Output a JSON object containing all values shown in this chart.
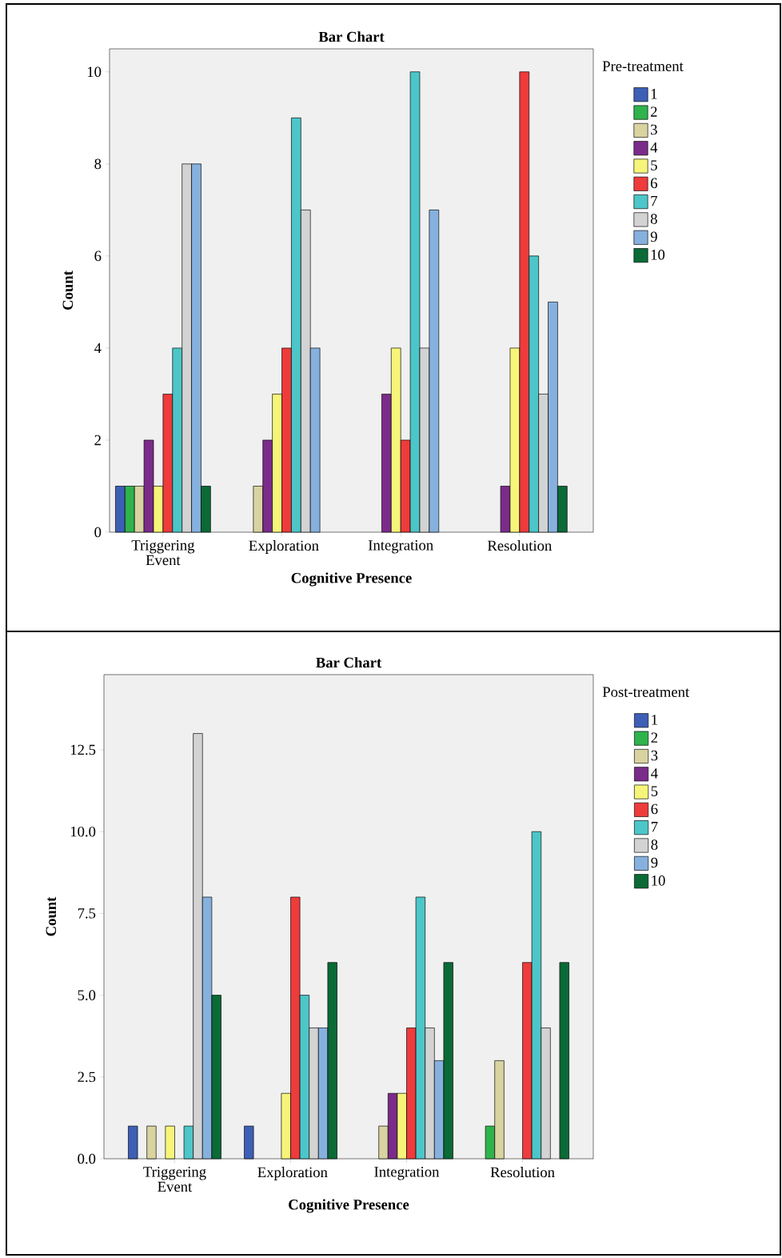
{
  "chart_data": [
    {
      "type": "bar",
      "title": "Bar Chart",
      "xlabel": "Cognitive Presence",
      "ylabel": "Count",
      "legend_title": "Pre-treatment",
      "legend": "right",
      "categories": [
        "Triggering Event",
        "Exploration",
        "Integration",
        "Resolution"
      ],
      "ylim": [
        0,
        10.5
      ],
      "yticks": [
        0,
        2,
        4,
        6,
        8,
        10
      ],
      "series": [
        {
          "name": "1",
          "color": "#3d5fb5",
          "values": [
            1,
            null,
            null,
            null
          ]
        },
        {
          "name": "2",
          "color": "#2fb34c",
          "values": [
            1,
            null,
            null,
            null
          ]
        },
        {
          "name": "3",
          "color": "#d8d3a0",
          "values": [
            1,
            1,
            null,
            null
          ]
        },
        {
          "name": "4",
          "color": "#7b2b8a",
          "values": [
            2,
            2,
            3,
            1
          ]
        },
        {
          "name": "5",
          "color": "#f6f57a",
          "values": [
            1,
            3,
            4,
            4
          ]
        },
        {
          "name": "6",
          "color": "#ee3b3b",
          "values": [
            3,
            4,
            2,
            10
          ]
        },
        {
          "name": "7",
          "color": "#4cc6c8",
          "values": [
            4,
            9,
            10,
            6
          ]
        },
        {
          "name": "8",
          "color": "#d3d3d3",
          "values": [
            8,
            7,
            4,
            3
          ]
        },
        {
          "name": "9",
          "color": "#86b1de",
          "values": [
            8,
            4,
            7,
            5
          ]
        },
        {
          "name": "10",
          "color": "#0b6a36",
          "values": [
            1,
            null,
            null,
            1
          ]
        }
      ]
    },
    {
      "type": "bar",
      "title": "Bar Chart",
      "xlabel": "Cognitive Presence",
      "ylabel": "Count",
      "legend_title": "Post-treatment",
      "legend": "right",
      "categories": [
        "Triggering Event",
        "Exploration",
        "Integration",
        "Resolution"
      ],
      "ylim": [
        0,
        14.8
      ],
      "yticks": [
        {
          "value": 0,
          "label": "0.0"
        },
        {
          "value": 2.5,
          "label": "2.5"
        },
        {
          "value": 5,
          "label": "5.0"
        },
        {
          "value": 7.5,
          "label": "7.5"
        },
        {
          "value": 10,
          "label": "10.0"
        },
        {
          "value": 12.5,
          "label": "12.5"
        }
      ],
      "series": [
        {
          "name": "1",
          "color": "#3d5fb5",
          "values": [
            1,
            1,
            null,
            null
          ]
        },
        {
          "name": "2",
          "color": "#2fb34c",
          "values": [
            null,
            null,
            null,
            1
          ]
        },
        {
          "name": "3",
          "color": "#d8d3a0",
          "values": [
            1,
            null,
            1,
            3
          ]
        },
        {
          "name": "4",
          "color": "#7b2b8a",
          "values": [
            null,
            null,
            2,
            null
          ]
        },
        {
          "name": "5",
          "color": "#f6f57a",
          "values": [
            1,
            2,
            2,
            null
          ]
        },
        {
          "name": "6",
          "color": "#ee3b3b",
          "values": [
            null,
            8,
            4,
            6
          ]
        },
        {
          "name": "7",
          "color": "#4cc6c8",
          "values": [
            1,
            5,
            8,
            10
          ]
        },
        {
          "name": "8",
          "color": "#d3d3d3",
          "values": [
            13,
            4,
            4,
            4
          ]
        },
        {
          "name": "9",
          "color": "#86b1de",
          "values": [
            8,
            4,
            3,
            null
          ]
        },
        {
          "name": "10",
          "color": "#0b6a36",
          "values": [
            5,
            6,
            6,
            6
          ]
        }
      ]
    }
  ]
}
